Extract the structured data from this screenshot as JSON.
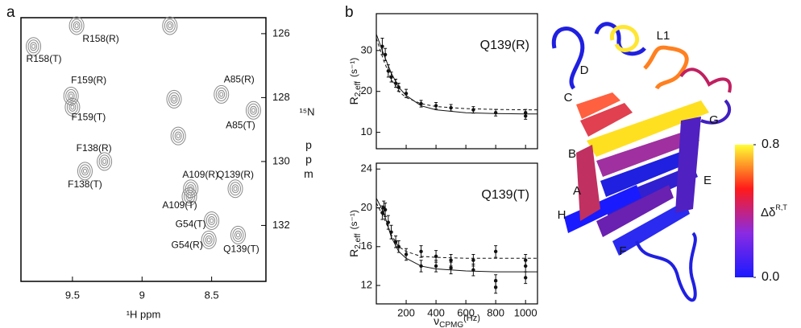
{
  "chart_data": [
    {
      "type": "contour",
      "panel": "a",
      "xlabel": "¹H ppm",
      "ylabel_nucleus": "¹⁵N",
      "ylabel_unit": "ppm",
      "xlim": [
        9.87,
        8.11
      ],
      "ylim": [
        125.5,
        133.75
      ],
      "xticks": [
        9.5,
        9,
        8.5
      ],
      "yticks": [
        126,
        128,
        130,
        132
      ],
      "x": [
        9.78,
        9.47,
        8.8,
        9.51,
        9.5,
        8.43,
        8.2,
        8.77,
        9.27,
        9.41,
        8.65,
        8.66,
        8.33,
        8.5,
        8.52,
        8.31,
        8.74
      ],
      "values": [
        126.4,
        125.75,
        125.75,
        127.95,
        128.3,
        127.9,
        128.4,
        128.05,
        130.0,
        130.3,
        130.85,
        131.1,
        130.85,
        131.85,
        132.45,
        132.3,
        129.2
      ],
      "point_labels": [
        "R158(T)",
        "R158(R)",
        null,
        "F159(R)",
        "F159(T)",
        "A85(R)",
        "A85(T)",
        null,
        "F138(R)",
        "F138(T)",
        "A109(R)",
        "A109(T)",
        "Q139(R)",
        "G54(T)",
        "G54(R)",
        "Q139(T)",
        null
      ],
      "color": "#8a8a8a"
    },
    {
      "type": "relaxation",
      "panel": "b",
      "title": "Q139(R)",
      "ylabel": {
        "base": "R",
        "sub": "2,eff",
        "unit": "(s⁻¹)"
      },
      "xlim": [
        0,
        1080
      ],
      "ylim": [
        6,
        39
      ],
      "xticks": [
        200,
        400,
        600,
        800,
        1000
      ],
      "yticks": [
        10,
        20,
        30
      ],
      "x": [
        40,
        60,
        80,
        100,
        130,
        150,
        200,
        300,
        400,
        500,
        650,
        800,
        1000,
        1000
      ],
      "values": [
        31,
        29,
        25,
        23.5,
        22,
        21,
        19.5,
        17,
        16.5,
        16,
        15.5,
        14.8,
        14.8,
        14
      ],
      "errors": [
        2,
        1.5,
        1.5,
        1.2,
        1,
        1,
        1,
        0.8,
        0.8,
        0.8,
        0.8,
        0.8,
        0.8,
        0.8
      ],
      "fit_x": [
        0,
        50,
        100,
        150,
        200,
        300,
        400,
        600,
        800,
        1000,
        1080
      ],
      "fits": [
        {
          "style": "solid",
          "values": [
            34,
            29,
            24.5,
            21,
            19,
            16.5,
            15.5,
            14.8,
            14.6,
            14.5,
            14.5
          ]
        },
        {
          "style": "dashed",
          "values": [
            33,
            27.5,
            23,
            20,
            18.5,
            17,
            16.3,
            15.8,
            15.6,
            15.5,
            15.5
          ]
        }
      ],
      "color": "#111111"
    },
    {
      "type": "relaxation",
      "title": "Q139(T)",
      "ylabel": {
        "base": "R",
        "sub": "2,eff",
        "unit": "(s⁻¹)"
      },
      "xlabel": {
        "base": "ν",
        "sub": "CPMG",
        "unit": "(Hz)"
      },
      "xlim": [
        0,
        1080
      ],
      "ylim": [
        10.1,
        24.6
      ],
      "xticks": [
        200,
        400,
        600,
        800,
        1000
      ],
      "yticks": [
        12,
        16,
        20,
        24
      ],
      "x": [
        40,
        50,
        60,
        80,
        100,
        130,
        150,
        200,
        300,
        300,
        400,
        400,
        500,
        500,
        650,
        650,
        800,
        800,
        800,
        1000,
        1000,
        1000
      ],
      "values": [
        19.5,
        20,
        19.8,
        18.5,
        17.5,
        16.5,
        16,
        15.2,
        15.5,
        14,
        15,
        14,
        14.6,
        13.8,
        14.6,
        13.6,
        15.5,
        12.5,
        11.8,
        14.6,
        14,
        12.8
      ],
      "errors": [
        0.7,
        0.7,
        0.7,
        0.7,
        0.7,
        0.6,
        0.6,
        0.6,
        0.6,
        0.6,
        0.6,
        0.6,
        0.6,
        0.6,
        0.6,
        0.6,
        0.6,
        0.6,
        0.6,
        0.6,
        0.6,
        0.6
      ],
      "fit_x": [
        0,
        50,
        100,
        150,
        200,
        300,
        400,
        600,
        800,
        1000,
        1080
      ],
      "fits": [
        {
          "style": "solid",
          "values": [
            21,
            19.5,
            17,
            15.5,
            14.8,
            14,
            13.7,
            13.5,
            13.4,
            13.4,
            13.4
          ]
        },
        {
          "style": "dashed",
          "values": [
            20.5,
            19,
            17.2,
            16,
            15.5,
            15,
            14.9,
            14.8,
            14.8,
            14.8,
            14.8
          ]
        }
      ],
      "color": "#111111"
    },
    {
      "type": "structure",
      "structure_labels": [
        "L1",
        "D",
        "C",
        "G",
        "B",
        "E",
        "A",
        "H",
        "F"
      ],
      "colorbar_label": {
        "base": "Δδ",
        "sup": "R,T"
      },
      "ylim": [
        0,
        0.8
      ],
      "yticks": [
        {
          "value": 0,
          "label": "0.0"
        },
        {
          "value": 0.8,
          "label": "0.8"
        }
      ],
      "colors": [
        "#1a1aff",
        "#8a2be2",
        "#ff1a1a",
        "#ffff33"
      ]
    }
  ]
}
